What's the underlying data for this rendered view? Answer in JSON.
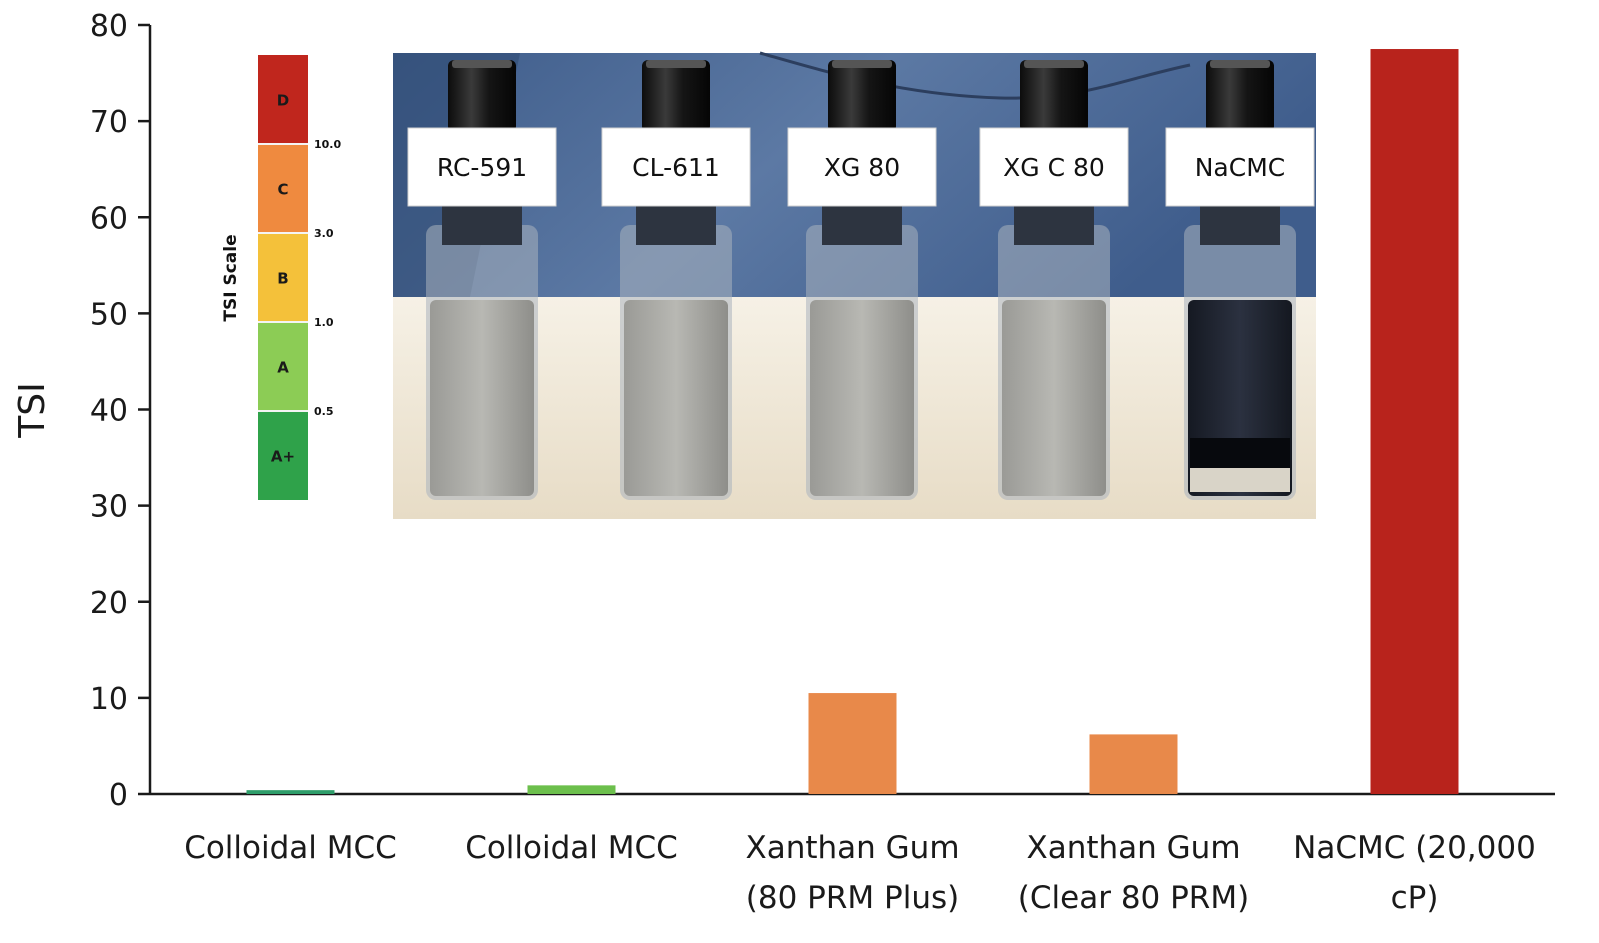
{
  "chart_data": {
    "type": "bar",
    "title": "",
    "xlabel": "",
    "ylabel": "TSI",
    "ylim": [
      0,
      80
    ],
    "yticks": [
      "0",
      "10",
      "20",
      "30",
      "40",
      "50",
      "60",
      "70",
      "80"
    ],
    "categories": [
      [
        "Colloidal MCC"
      ],
      [
        "Colloidal MCC"
      ],
      [
        "Xanthan Gum",
        "(80 PRM Plus)"
      ],
      [
        "Xanthan Gum",
        "(Clear 80 PRM)"
      ],
      [
        "NaCMC (20,000",
        "cP)"
      ]
    ],
    "values": [
      0.4,
      0.9,
      10.5,
      6.2,
      77.5
    ],
    "bar_colors": [
      "#2e9d6a",
      "#6cbf4c",
      "#e8894a",
      "#e8894a",
      "#b8231c"
    ],
    "grid": false,
    "legend": "none"
  },
  "inset_photo": {
    "vial_labels": [
      "RC-591",
      "CL-611",
      "XG 80",
      "XG C 80",
      "NaCMC"
    ]
  },
  "tsi_scale": {
    "title": "TSI Scale",
    "grades": [
      {
        "letter": "D",
        "color": "#c0261d"
      },
      {
        "letter": "C",
        "color": "#ef8a3f"
      },
      {
        "letter": "B",
        "color": "#f4c13a"
      },
      {
        "letter": "A",
        "color": "#8ccc55"
      },
      {
        "letter": "A+",
        "color": "#2fa24a"
      }
    ],
    "thresholds": [
      "10.0",
      "3.0",
      "1.0",
      "0.5"
    ]
  }
}
